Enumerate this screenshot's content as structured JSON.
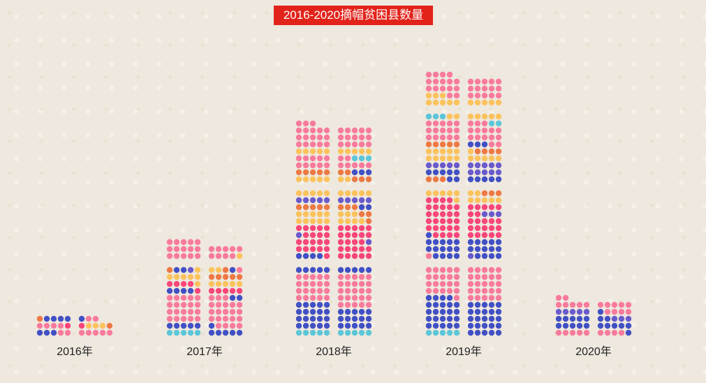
{
  "chart_data": {
    "type": "dot-matrix",
    "title": "2016-2020摘帽贫困县数量",
    "categories": [
      "2016年",
      "2017年",
      "2018年",
      "2019年",
      "2020年"
    ],
    "values": [
      28,
      125,
      283,
      344,
      52
    ],
    "colors": {
      "P": "#f97b9c",
      "B": "#4150c4",
      "V": "#6a5bcc",
      "R": "#f9467a",
      "Y": "#fcc25c",
      "O": "#ee7944",
      "C": "#5cc6d9"
    },
    "dots_per_row": 5,
    "columns": [
      [
        [
          "OBBBB",
          "PPPPR",
          "BBBPP"
        ],
        [
          "BPP",
          "RYYYO",
          "PPPPP"
        ]
      ],
      [
        [
          "PPPPP",
          "PPPPP",
          "PPPPP",
          "OBBVY",
          "YYYYY",
          "RRRRY",
          "BBBBR",
          "PPPPP",
          "PPPPP",
          "PPPPP",
          "PPPPP",
          "BBBBB",
          "CCCCC"
        ],
        [
          "PPPPP",
          "PPPPY",
          "YYOBP",
          "OOOOO",
          "YYYYY",
          "RRRRR",
          "PPPBB",
          "PPPPP",
          "PPPPP",
          "PPPPP",
          "BPPPP",
          "BBBBB"
        ]
      ],
      [
        [
          "PPP",
          "PPPPP",
          "PPPPP",
          "PPPPP",
          "YYYYY",
          "PPPPP",
          "PPPPP",
          "OOOOO",
          "YYYYY",
          "YYYYY",
          "VVVVV",
          "OOOOO",
          "YYYYY",
          "YYYYY",
          "RRRRR",
          "VRRRR",
          "RRRRR",
          "RRRRR",
          "BBBBR",
          "BBBBB",
          "PPPPP",
          "PPPPP",
          "PPPPP",
          "PPPPP",
          "BBBBB",
          "BBBBB",
          "BBBBB",
          "BBBBB",
          "CCCCC"
        ],
        [
          "PPPPP",
          "PPPPP",
          "PPPPP",
          "YYYYY",
          "PPCCC",
          "PPPPP",
          "OOBBB",
          "YYOOO",
          "YYYYY",
          "VVVVV",
          "OOOBB",
          "YYYOO",
          "YYYYO",
          "RRRRR",
          "RRRRR",
          "RRRRV",
          "RRRRR",
          "RRRRR",
          "BBBBB",
          "PPPPP",
          "PPPPP",
          "PPPPP",
          "PPPPP",
          "PPPPP",
          "BBBBB",
          "BBBBB",
          "BBBBB",
          "CCCCC"
        ]
      ],
      [
        [
          "PPPP",
          "PPPPP",
          "PPPPP",
          "YYYPP",
          "YYYYY",
          "CCCYY",
          "PPPPP",
          "PPPPP",
          "PPPPP",
          "OOOOO",
          "YYYYY",
          "YYYYY",
          "VVVVV",
          "BBBBB",
          "OOOBB",
          "YYYYY",
          "RRRRY",
          "RRRRR",
          "RRRRR",
          "RRRRR",
          "RRRRR",
          "BRRRR",
          "BBBBB",
          "BBBBB",
          "PBBBB",
          "PPPPP",
          "PPPPP",
          "PPPPP",
          "PPPPP",
          "BBBBP",
          "BBBBB",
          "BBBBB",
          "BBBBB",
          "BBBBB",
          "CCCCC"
        ],
        [
          "PPPPP",
          "PPPPP",
          "PPPPP",
          "YYYYY",
          "YYYYY",
          "PPPCC",
          "PPPPP",
          "PPPPP",
          "BBBPP",
          "YOOOO",
          "YYYYY",
          "VVVVV",
          "VVVVV",
          "BBBBB",
          "YYOOO",
          "YYYYY",
          "RRRRR",
          "RRVVV",
          "RRRRR",
          "RRRRR",
          "RRRRR",
          "BBBBB",
          "BBBBB",
          "VBBBB",
          "PPPPP",
          "PPPPP",
          "PPPPP",
          "PPPPP",
          "PPPPP",
          "BBBBB",
          "BBBBB",
          "BBBBB",
          "BBBBB",
          "BBBBB"
        ]
      ],
      [
        [
          "PP",
          "PPPPP",
          "VVVVV",
          "BBBBB",
          "BBBBB",
          "PPPPP"
        ],
        [
          "PPPPP",
          "BPPPP",
          "BBVVV",
          "BBBBB",
          "PPPPB"
        ]
      ]
    ]
  }
}
